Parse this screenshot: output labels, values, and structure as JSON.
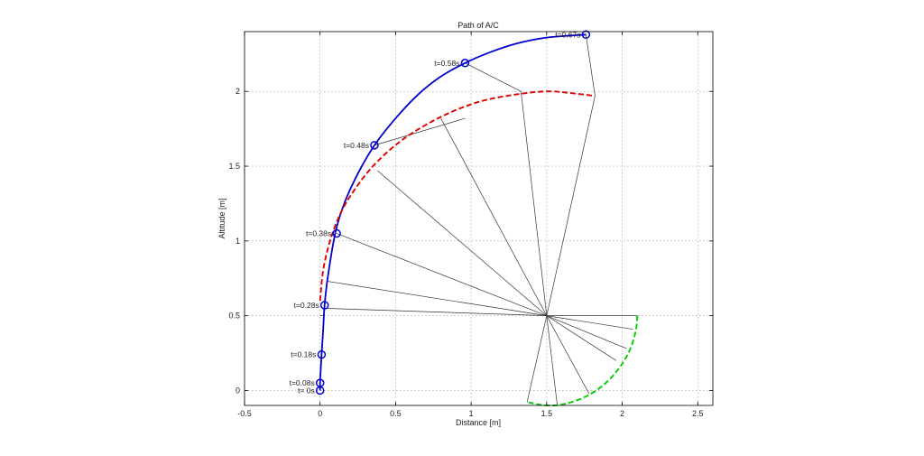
{
  "chart_data": {
    "type": "line",
    "title": "Path of A/C",
    "xlabel": "Distance [m]",
    "ylabel": "Altitude [m]",
    "xlim": [
      -0.5,
      2.6
    ],
    "ylim": [
      -0.1,
      2.4
    ],
    "xticks": [
      -0.5,
      0,
      0.5,
      1,
      1.5,
      2,
      2.5
    ],
    "xtick_labels": [
      "-0.5",
      "0",
      "0.5",
      "1",
      "1.5",
      "2",
      "2.5"
    ],
    "yticks": [
      0,
      0.5,
      1,
      1.5,
      2
    ],
    "ytick_labels": [
      "0",
      "0.5",
      "1",
      "1.5",
      "2"
    ],
    "grid": true,
    "colors": {
      "path": "#0000cc",
      "dashed_red": "#dd0000",
      "dashed_green": "#00cc00",
      "lines": "#333333"
    },
    "pivot": [
      1.5,
      0.5
    ],
    "series": [
      {
        "style": "solid",
        "color": "#0000cc",
        "x": [
          0.0,
          0.0,
          0.005,
          0.01,
          0.02,
          0.03,
          0.05,
          0.1,
          0.16,
          0.25,
          0.36,
          0.5,
          0.65,
          0.8,
          0.96,
          1.12,
          1.3,
          1.5,
          1.76
        ],
        "y": [
          0.0,
          0.05,
          0.15,
          0.24,
          0.4,
          0.57,
          0.75,
          1.05,
          1.25,
          1.45,
          1.64,
          1.82,
          1.98,
          2.1,
          2.19,
          2.26,
          2.32,
          2.36,
          2.38
        ]
      },
      {
        "style": "dashed",
        "color": "#dd0000",
        "x": [
          0.0,
          0.02,
          0.06,
          0.12,
          0.2,
          0.35,
          0.55,
          0.8,
          1.05,
          1.3,
          1.5,
          1.65,
          1.82
        ],
        "y": [
          0.6,
          0.8,
          0.98,
          1.15,
          1.3,
          1.5,
          1.68,
          1.83,
          1.93,
          1.98,
          2.0,
          1.99,
          1.97
        ]
      },
      {
        "style": "dashed",
        "color": "#00cc00",
        "x": [
          2.1,
          2.09,
          2.05,
          1.98,
          1.88,
          1.76,
          1.62,
          1.5,
          1.38
        ],
        "y": [
          0.5,
          0.4,
          0.27,
          0.15,
          0.04,
          -0.04,
          -0.09,
          -0.1,
          -0.08
        ]
      }
    ],
    "segments": [
      {
        "x": [
          1.5,
          0.02
        ],
        "y": [
          0.5,
          0.55
        ]
      },
      {
        "x": [
          1.5,
          0.05
        ],
        "y": [
          0.5,
          0.73
        ]
      },
      {
        "x": [
          1.5,
          0.11
        ],
        "y": [
          0.5,
          1.05
        ]
      },
      {
        "x": [
          1.5,
          0.38
        ],
        "y": [
          0.5,
          1.47
        ]
      },
      {
        "x": [
          1.5,
          0.8
        ],
        "y": [
          0.5,
          1.82
        ]
      },
      {
        "x": [
          1.5,
          1.33
        ],
        "y": [
          0.5,
          2.0
        ]
      },
      {
        "x": [
          1.5,
          1.82
        ],
        "y": [
          0.5,
          1.97
        ]
      },
      {
        "x": [
          1.5,
          2.1
        ],
        "y": [
          0.5,
          0.5
        ]
      },
      {
        "x": [
          1.5,
          2.07
        ],
        "y": [
          0.5,
          0.41
        ]
      },
      {
        "x": [
          1.5,
          2.03
        ],
        "y": [
          0.5,
          0.28
        ]
      },
      {
        "x": [
          1.5,
          1.96
        ],
        "y": [
          0.5,
          0.2
        ]
      },
      {
        "x": [
          1.5,
          1.78
        ],
        "y": [
          0.5,
          -0.02
        ]
      },
      {
        "x": [
          1.5,
          1.57
        ],
        "y": [
          0.5,
          -0.1
        ]
      },
      {
        "x": [
          1.5,
          1.37
        ],
        "y": [
          0.5,
          -0.08
        ]
      },
      {
        "x": [
          0.0,
          0.02
        ],
        "y": [
          0.5,
          0.5
        ]
      },
      {
        "x": [
          0.36,
          0.96
        ],
        "y": [
          1.64,
          1.82
        ]
      },
      {
        "x": [
          0.96,
          1.33
        ],
        "y": [
          2.19,
          2.0
        ]
      },
      {
        "x": [
          1.76,
          1.82
        ],
        "y": [
          2.38,
          1.97
        ]
      }
    ],
    "markers": [
      {
        "x": 0.0,
        "y": 0.0,
        "label": "t=  0s"
      },
      {
        "x": 0.0,
        "y": 0.05,
        "label": "t=0.08s"
      },
      {
        "x": 0.01,
        "y": 0.24,
        "label": "t=0.18s"
      },
      {
        "x": 0.03,
        "y": 0.57,
        "label": "t=0.28s"
      },
      {
        "x": 0.11,
        "y": 1.05,
        "label": "t=0.38s"
      },
      {
        "x": 0.36,
        "y": 1.64,
        "label": "t=0.48s"
      },
      {
        "x": 0.96,
        "y": 2.19,
        "label": "t=0.58s"
      },
      {
        "x": 1.76,
        "y": 2.38,
        "label": "t=0.67s"
      }
    ]
  }
}
